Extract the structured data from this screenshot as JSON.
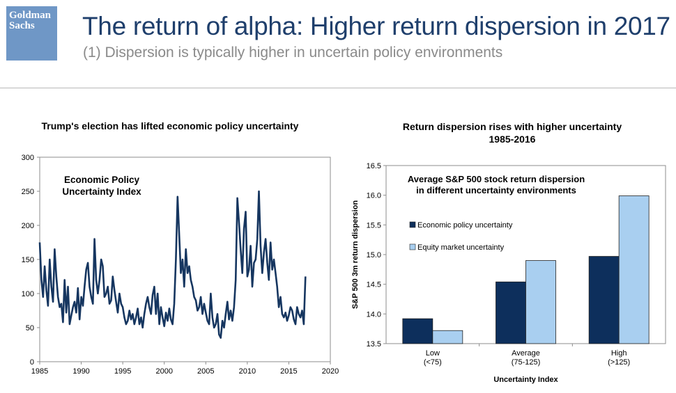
{
  "brand": {
    "line1": "Goldman",
    "line2": "Sachs",
    "color": "#6f97c6"
  },
  "header": {
    "title": "The return of alpha: Higher return dispersion in 2017",
    "subtitle": "(1) Dispersion is typically higher in uncertain policy environments"
  },
  "chart_data": [
    {
      "type": "line",
      "title": "Trump's election has lifted economic policy uncertainty",
      "annotation": [
        "Economic Policy",
        "Uncertainty Index"
      ],
      "xlabel": "",
      "ylabel": "",
      "xlim": [
        1985,
        2020
      ],
      "ylim": [
        0,
        300
      ],
      "xticks": [
        1985,
        1990,
        1995,
        2000,
        2005,
        2010,
        2015,
        2020
      ],
      "yticks": [
        0,
        50,
        100,
        150,
        200,
        250,
        300
      ],
      "color": "#163660",
      "series": [
        {
          "name": "Economic Policy Uncertainty Index",
          "x": [
            1985.0,
            1985.2,
            1985.4,
            1985.6,
            1985.8,
            1986.0,
            1986.2,
            1986.4,
            1986.6,
            1986.8,
            1987.0,
            1987.2,
            1987.4,
            1987.6,
            1987.8,
            1988.0,
            1988.2,
            1988.4,
            1988.6,
            1988.8,
            1989.0,
            1989.2,
            1989.4,
            1989.6,
            1989.8,
            1990.0,
            1990.2,
            1990.4,
            1990.6,
            1990.8,
            1991.0,
            1991.2,
            1991.4,
            1991.6,
            1991.8,
            1992.0,
            1992.2,
            1992.4,
            1992.6,
            1992.8,
            1993.0,
            1993.2,
            1993.4,
            1993.6,
            1993.8,
            1994.0,
            1994.2,
            1994.4,
            1994.6,
            1994.8,
            1995.0,
            1995.2,
            1995.4,
            1995.6,
            1995.8,
            1996.0,
            1996.2,
            1996.4,
            1996.6,
            1996.8,
            1997.0,
            1997.2,
            1997.4,
            1997.6,
            1997.8,
            1998.0,
            1998.2,
            1998.4,
            1998.6,
            1998.8,
            1999.0,
            1999.2,
            1999.4,
            1999.6,
            1999.8,
            2000.0,
            2000.2,
            2000.4,
            2000.6,
            2000.8,
            2001.0,
            2001.2,
            2001.4,
            2001.6,
            2001.8,
            2002.0,
            2002.2,
            2002.4,
            2002.6,
            2002.8,
            2003.0,
            2003.2,
            2003.4,
            2003.6,
            2003.8,
            2004.0,
            2004.2,
            2004.4,
            2004.6,
            2004.8,
            2005.0,
            2005.2,
            2005.4,
            2005.6,
            2005.8,
            2006.0,
            2006.2,
            2006.4,
            2006.6,
            2006.8,
            2007.0,
            2007.2,
            2007.4,
            2007.6,
            2007.8,
            2008.0,
            2008.2,
            2008.4,
            2008.6,
            2008.8,
            2009.0,
            2009.2,
            2009.4,
            2009.6,
            2009.8,
            2010.0,
            2010.2,
            2010.4,
            2010.6,
            2010.8,
            2011.0,
            2011.2,
            2011.4,
            2011.6,
            2011.8,
            2012.0,
            2012.2,
            2012.4,
            2012.6,
            2012.8,
            2013.0,
            2013.2,
            2013.4,
            2013.6,
            2013.8,
            2014.0,
            2014.2,
            2014.4,
            2014.6,
            2014.8,
            2015.0,
            2015.2,
            2015.4,
            2015.6,
            2015.8,
            2016.0,
            2016.2,
            2016.4,
            2016.6,
            2016.8,
            2017.0
          ],
          "values": [
            175,
            120,
            95,
            140,
            105,
            82,
            150,
            110,
            88,
            165,
            125,
            95,
            80,
            85,
            58,
            120,
            72,
            110,
            55,
            68,
            80,
            88,
            72,
            108,
            62,
            95,
            82,
            110,
            135,
            145,
            110,
            95,
            85,
            180,
            120,
            100,
            120,
            150,
            140,
            95,
            100,
            110,
            85,
            90,
            125,
            105,
            88,
            72,
            100,
            85,
            80,
            65,
            55,
            60,
            75,
            62,
            70,
            55,
            65,
            78,
            55,
            65,
            50,
            70,
            85,
            95,
            80,
            70,
            98,
            110,
            70,
            100,
            55,
            80,
            65,
            52,
            72,
            60,
            78,
            62,
            55,
            85,
            150,
            242,
            185,
            130,
            150,
            110,
            165,
            130,
            140,
            120,
            110,
            95,
            90,
            75,
            80,
            95,
            70,
            85,
            72,
            60,
            55,
            100,
            65,
            50,
            55,
            70,
            40,
            35,
            60,
            50,
            70,
            88,
            62,
            75,
            60,
            80,
            120,
            240,
            205,
            165,
            130,
            195,
            220,
            125,
            135,
            170,
            110,
            145,
            150,
            180,
            250,
            170,
            130,
            160,
            180,
            145,
            120,
            175,
            135,
            150,
            130,
            110,
            80,
            95,
            70,
            65,
            72,
            60,
            68,
            80,
            75,
            62,
            55,
            80,
            70,
            65,
            75,
            55,
            125
          ]
        }
      ]
    },
    {
      "type": "bar",
      "title": [
        "Return dispersion rises with higher uncertainty",
        "1985-2016"
      ],
      "annotation": [
        "Average S&P 500 stock return dispersion",
        "in different uncertainty environments"
      ],
      "xlabel": "Uncertainty Index",
      "ylabel": "S&P 500 3m return dispersion",
      "ylim": [
        13.5,
        16.5
      ],
      "yticks": [
        "13.5",
        "14.0",
        "14.5",
        "15.0",
        "15.5",
        "16.0",
        "16.5"
      ],
      "categories": [
        [
          "Low",
          "(<75)"
        ],
        [
          "Average",
          "(75-125)"
        ],
        [
          "High",
          "(>125)"
        ]
      ],
      "series": [
        {
          "name": "Economic policy uncertainty",
          "color": "#0d2f5c",
          "values": [
            13.92,
            14.54,
            14.97
          ]
        },
        {
          "name": "Equity market uncertainty",
          "color": "#a9cff0",
          "values": [
            13.72,
            14.9,
            15.99
          ]
        }
      ]
    }
  ]
}
